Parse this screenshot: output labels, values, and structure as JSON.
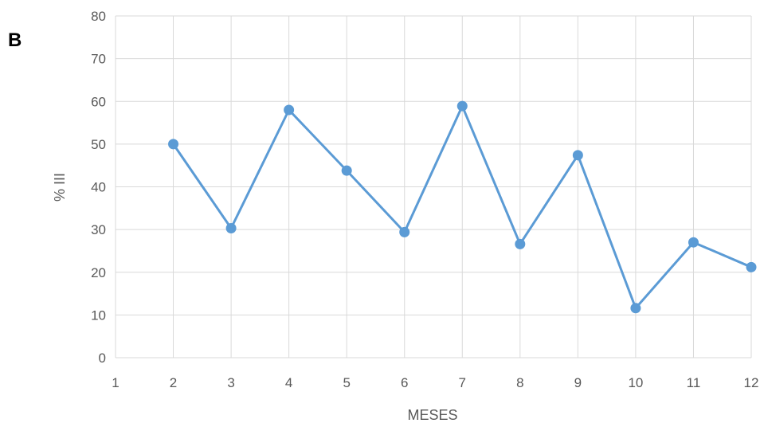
{
  "panel_label": "B",
  "colors": {
    "series": "#5b9bd5",
    "grid": "#d9d9d9",
    "tick_text": "#595959"
  },
  "chart_data": {
    "type": "line",
    "title": "",
    "xlabel": "MESES",
    "ylabel": "% III",
    "xlim": [
      1,
      12
    ],
    "ylim": [
      0,
      80
    ],
    "x_ticks": [
      1,
      2,
      3,
      4,
      5,
      6,
      7,
      8,
      9,
      10,
      11,
      12
    ],
    "y_ticks": [
      0,
      10,
      20,
      30,
      40,
      50,
      60,
      70,
      80
    ],
    "grid": true,
    "legend": "none",
    "series": [
      {
        "x": [
          2,
          3,
          4,
          5,
          6,
          7,
          8,
          9,
          10,
          11,
          12
        ],
        "y": [
          50,
          30.3,
          58,
          43.8,
          29.4,
          58.9,
          26.6,
          47.4,
          11.6,
          27,
          21.2
        ]
      }
    ]
  }
}
